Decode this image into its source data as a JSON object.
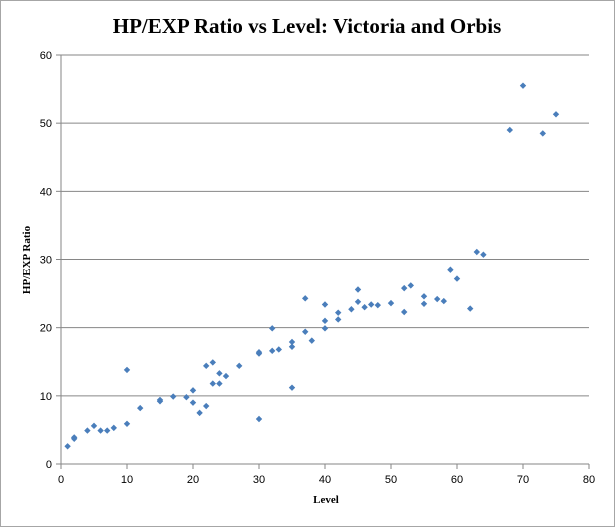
{
  "chart_data": {
    "type": "scatter",
    "title": "HP/EXP Ratio vs Level: Victoria and Orbis",
    "xlabel": "Level",
    "ylabel": "HP/EXP Ratio",
    "xlim": [
      0,
      80
    ],
    "ylim": [
      0,
      60
    ],
    "xticks": [
      0,
      10,
      20,
      30,
      40,
      50,
      60,
      70,
      80
    ],
    "yticks": [
      0,
      10,
      20,
      30,
      40,
      50,
      60
    ],
    "grid": "horizontal major gridlines",
    "legend": "none",
    "marker": "diamond",
    "color": "#4a7ebb",
    "points": [
      [
        1,
        2.6
      ],
      [
        2,
        3.7
      ],
      [
        2,
        3.9
      ],
      [
        4,
        4.9
      ],
      [
        5,
        5.6
      ],
      [
        6,
        4.9
      ],
      [
        7,
        4.9
      ],
      [
        8,
        5.3
      ],
      [
        10,
        5.9
      ],
      [
        10,
        13.8
      ],
      [
        12,
        8.2
      ],
      [
        15,
        9.2
      ],
      [
        15,
        9.4
      ],
      [
        17,
        9.9
      ],
      [
        19,
        9.8
      ],
      [
        20,
        9.0
      ],
      [
        20,
        10.8
      ],
      [
        21,
        7.5
      ],
      [
        22,
        8.5
      ],
      [
        22,
        14.4
      ],
      [
        23,
        11.8
      ],
      [
        23,
        14.9
      ],
      [
        24,
        11.8
      ],
      [
        24,
        13.3
      ],
      [
        25,
        12.9
      ],
      [
        27,
        14.4
      ],
      [
        30,
        6.6
      ],
      [
        30,
        16.2
      ],
      [
        30,
        16.4
      ],
      [
        32,
        16.6
      ],
      [
        32,
        19.9
      ],
      [
        33,
        16.8
      ],
      [
        35,
        11.2
      ],
      [
        35,
        17.2
      ],
      [
        35,
        17.9
      ],
      [
        37,
        19.4
      ],
      [
        37,
        24.3
      ],
      [
        38,
        18.1
      ],
      [
        40,
        19.9
      ],
      [
        40,
        21.0
      ],
      [
        40,
        23.4
      ],
      [
        42,
        21.2
      ],
      [
        42,
        22.2
      ],
      [
        44,
        22.7
      ],
      [
        45,
        23.8
      ],
      [
        45,
        25.6
      ],
      [
        46,
        23.0
      ],
      [
        47,
        23.4
      ],
      [
        48,
        23.3
      ],
      [
        50,
        23.6
      ],
      [
        52,
        22.3
      ],
      [
        52,
        25.8
      ],
      [
        53,
        26.2
      ],
      [
        55,
        23.5
      ],
      [
        55,
        24.6
      ],
      [
        57,
        24.2
      ],
      [
        58,
        23.9
      ],
      [
        59,
        28.5
      ],
      [
        60,
        27.2
      ],
      [
        62,
        22.8
      ],
      [
        63,
        31.1
      ],
      [
        64,
        30.7
      ],
      [
        68,
        49.0
      ],
      [
        70,
        55.5
      ],
      [
        73,
        48.5
      ],
      [
        75,
        51.3
      ]
    ]
  }
}
